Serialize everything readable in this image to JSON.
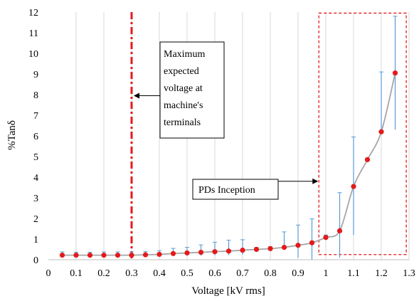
{
  "chart_data": {
    "type": "scatter",
    "title": "",
    "xlabel": "Voltage [kV rms]",
    "ylabel": "%Tanδ",
    "xlim": [
      0,
      1.3
    ],
    "ylim": [
      0,
      12
    ],
    "x_ticks": [
      "0",
      "0.1",
      "0.2",
      "0.3",
      "0.4",
      "0.5",
      "0.6",
      "0.7",
      "0.8",
      "0.9",
      "1",
      "1.1",
      "1.2",
      "1.3"
    ],
    "y_ticks": [
      "0",
      "1",
      "2",
      "3",
      "4",
      "5",
      "6",
      "7",
      "8",
      "9",
      "10",
      "11",
      "12"
    ],
    "grid": "vertical",
    "series": [
      {
        "points": [
          {
            "x": 0.05,
            "y": 0.22,
            "err_low": 0.15,
            "err_high": 0.38
          },
          {
            "x": 0.1,
            "y": 0.22,
            "err_low": 0.15,
            "err_high": 0.36
          },
          {
            "x": 0.15,
            "y": 0.22,
            "err_low": 0.15,
            "err_high": 0.36
          },
          {
            "x": 0.2,
            "y": 0.22,
            "err_low": 0.15,
            "err_high": 0.38
          },
          {
            "x": 0.25,
            "y": 0.22,
            "err_low": 0.15,
            "err_high": 0.38
          },
          {
            "x": 0.3,
            "y": 0.22,
            "err_low": 0.15,
            "err_high": 0.38
          },
          {
            "x": 0.35,
            "y": 0.24,
            "err_low": 0.15,
            "err_high": 0.4
          },
          {
            "x": 0.4,
            "y": 0.26,
            "err_low": 0.16,
            "err_high": 0.44
          },
          {
            "x": 0.45,
            "y": 0.3,
            "err_low": 0.18,
            "err_high": 0.55
          },
          {
            "x": 0.5,
            "y": 0.33,
            "err_low": 0.2,
            "err_high": 0.6
          },
          {
            "x": 0.55,
            "y": 0.36,
            "err_low": 0.2,
            "err_high": 0.72
          },
          {
            "x": 0.6,
            "y": 0.39,
            "err_low": 0.22,
            "err_high": 0.85
          },
          {
            "x": 0.65,
            "y": 0.42,
            "err_low": 0.22,
            "err_high": 0.95
          },
          {
            "x": 0.7,
            "y": 0.46,
            "err_low": 0.24,
            "err_high": 0.97
          },
          {
            "x": 0.75,
            "y": 0.5,
            "err_low": 0.4,
            "err_high": 0.6
          },
          {
            "x": 0.8,
            "y": 0.54,
            "err_low": 0.45,
            "err_high": 0.63
          },
          {
            "x": 0.85,
            "y": 0.6,
            "err_low": 0.5,
            "err_high": 1.35
          },
          {
            "x": 0.9,
            "y": 0.7,
            "err_low": 0.1,
            "err_high": 1.68
          },
          {
            "x": 0.95,
            "y": 0.82,
            "err_low": 0.0,
            "err_high": 1.98
          },
          {
            "x": 1.0,
            "y": 1.08,
            "err_low": 0.95,
            "err_high": 1.2
          },
          {
            "x": 1.05,
            "y": 1.4,
            "err_low": 0.1,
            "err_high": 3.25
          },
          {
            "x": 1.1,
            "y": 3.55,
            "err_low": 1.2,
            "err_high": 5.95
          },
          {
            "x": 1.15,
            "y": 4.85,
            "err_low": 4.8,
            "err_high": 4.9
          },
          {
            "x": 1.2,
            "y": 6.2,
            "err_low": 6.15,
            "err_high": 9.1
          },
          {
            "x": 1.25,
            "y": 9.05,
            "err_low": 6.3,
            "err_high": 11.8
          }
        ]
      }
    ],
    "marker_color": "#e31a1c",
    "line_color": "#a6a6a6",
    "errorbar_color": "#5b9bd5",
    "annotations": [
      {
        "text_lines": [
          "Maximum",
          "expected",
          "voltage at",
          "machine's",
          "terminals"
        ],
        "vline_x": 0.3,
        "arrow_y": 7.95,
        "color": "#e31a1c"
      },
      {
        "text_lines": [
          "PDs Inception"
        ],
        "region_x": [
          0.975,
          1.29
        ],
        "region_y": [
          0.25,
          11.95
        ],
        "arrow_y": 3.8,
        "color": "#e31a1c"
      }
    ]
  }
}
